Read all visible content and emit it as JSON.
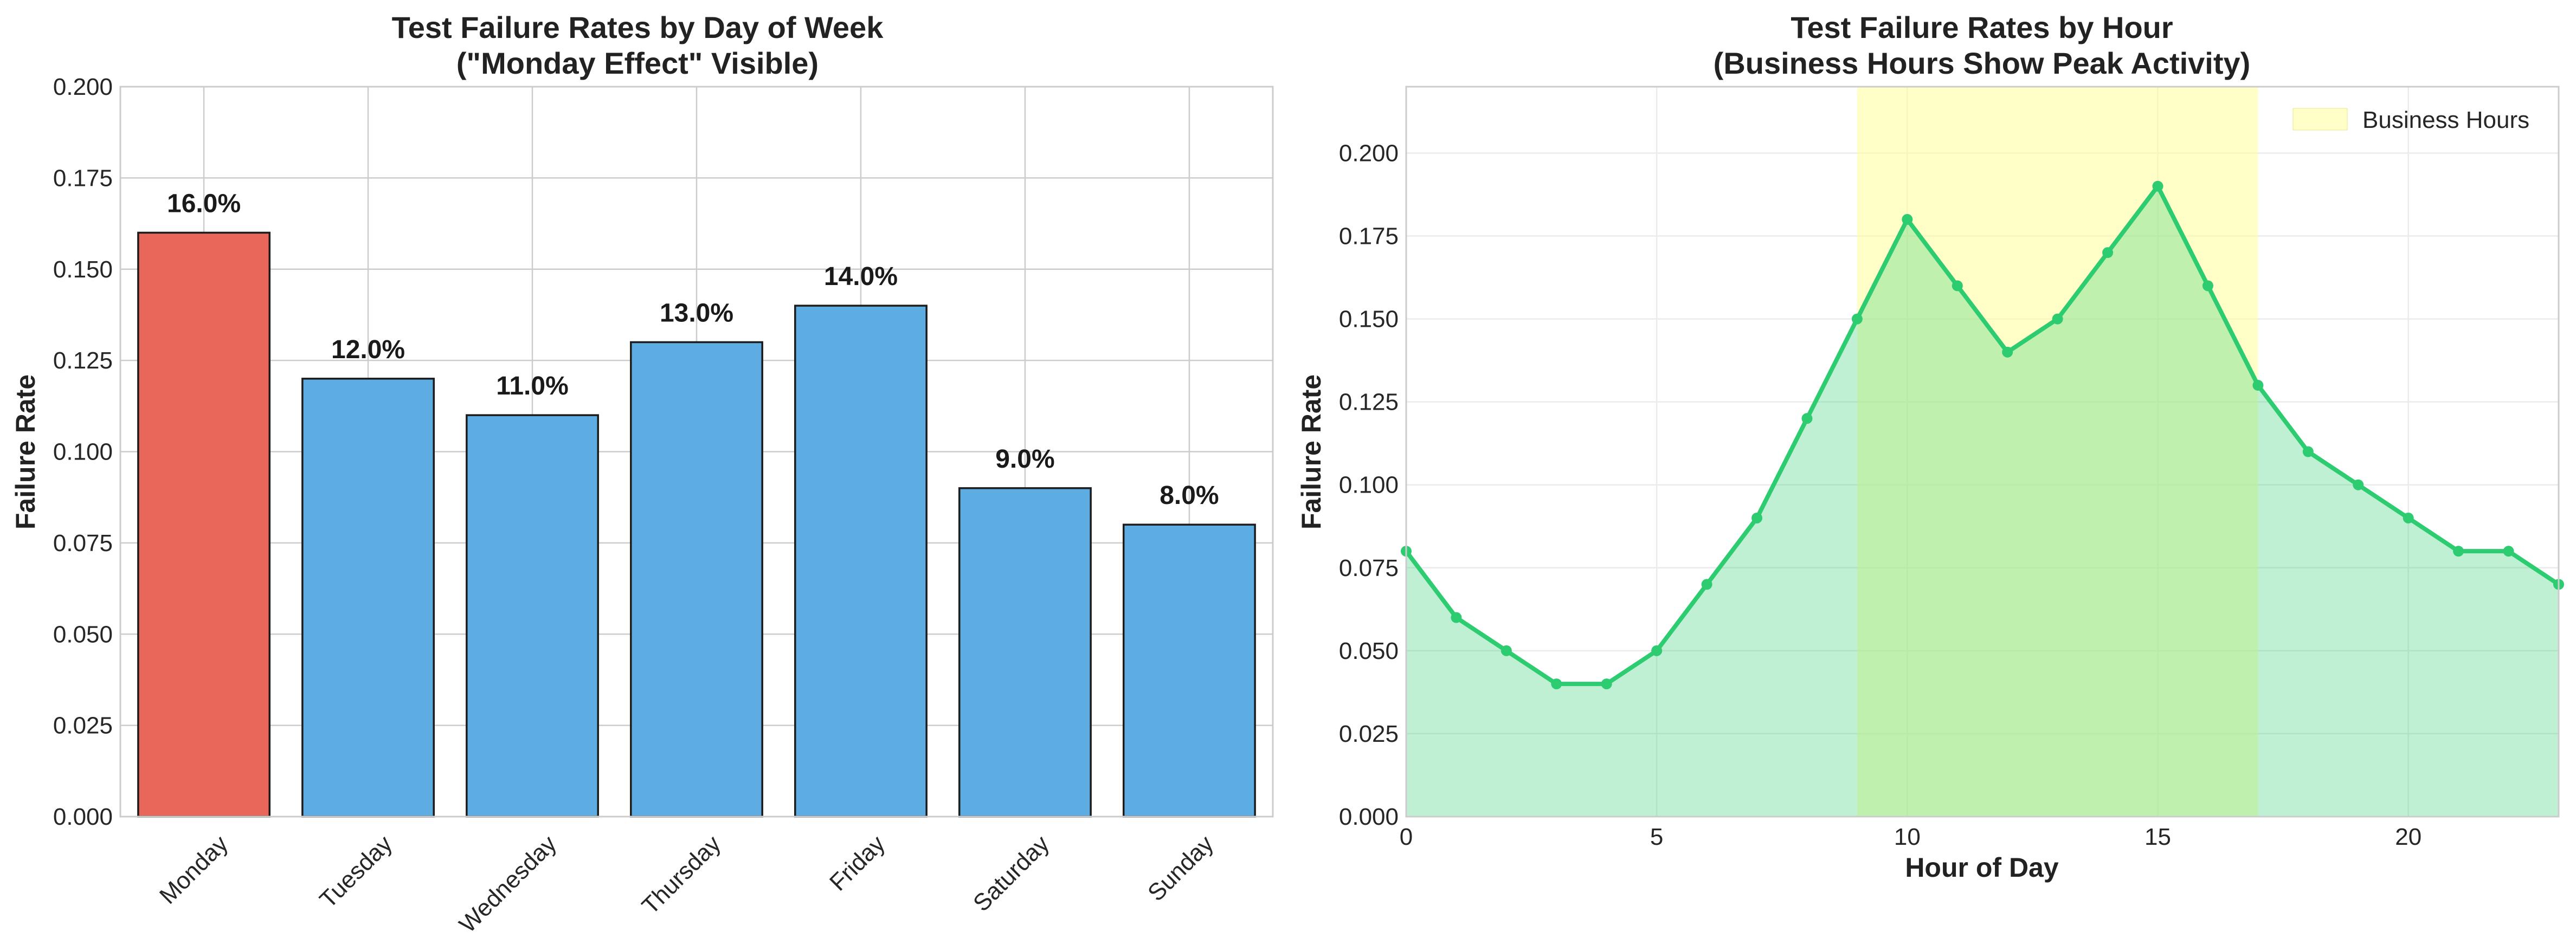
{
  "chart_data": [
    {
      "type": "bar",
      "title": "Test Failure Rates by Day of Week",
      "subtitle": "(\"Monday Effect\" Visible)",
      "xlabel": "",
      "ylabel": "Failure Rate",
      "categories": [
        "Monday",
        "Tuesday",
        "Wednesday",
        "Thursday",
        "Friday",
        "Saturday",
        "Sunday"
      ],
      "values": [
        0.16,
        0.12,
        0.11,
        0.13,
        0.14,
        0.09,
        0.08
      ],
      "data_labels": [
        "16.0%",
        "12.0%",
        "11.0%",
        "13.0%",
        "14.0%",
        "9.0%",
        "8.0%"
      ],
      "highlight_color": "#e8675a",
      "bar_color": "#5dade2",
      "ylim": [
        0,
        0.2
      ],
      "yticks": [
        0.0,
        0.025,
        0.05,
        0.075,
        0.1,
        0.125,
        0.15,
        0.175,
        0.2
      ],
      "ytick_labels": [
        "0.000",
        "0.025",
        "0.050",
        "0.075",
        "0.100",
        "0.125",
        "0.150",
        "0.175",
        "0.200"
      ],
      "grid": true
    },
    {
      "type": "line",
      "title": "Test Failure Rates by Hour",
      "subtitle": "(Business Hours Show Peak Activity)",
      "xlabel": "Hour of Day",
      "ylabel": "Failure Rate",
      "x": [
        0,
        1,
        2,
        3,
        4,
        5,
        6,
        7,
        8,
        9,
        10,
        11,
        12,
        13,
        14,
        15,
        16,
        17,
        18,
        19,
        20,
        21,
        22,
        23
      ],
      "values": [
        0.08,
        0.06,
        0.05,
        0.04,
        0.04,
        0.05,
        0.07,
        0.09,
        0.12,
        0.15,
        0.18,
        0.16,
        0.14,
        0.15,
        0.17,
        0.19,
        0.16,
        0.13,
        0.11,
        0.1,
        0.09,
        0.08,
        0.08,
        0.07
      ],
      "line_color": "#2ecc71",
      "fill_color": "#2ecc71",
      "shaded_region": {
        "x_start": 9,
        "x_end": 17,
        "color": "#ffff99",
        "label": "Business Hours"
      },
      "legend_position": "top-right",
      "xlim": [
        0,
        23
      ],
      "ylim": [
        0,
        0.22
      ],
      "xticks": [
        0,
        5,
        10,
        15,
        20
      ],
      "yticks": [
        0.0,
        0.025,
        0.05,
        0.075,
        0.1,
        0.125,
        0.15,
        0.175,
        0.2
      ],
      "ytick_labels": [
        "0.000",
        "0.025",
        "0.050",
        "0.075",
        "0.100",
        "0.125",
        "0.150",
        "0.175",
        "0.200"
      ],
      "grid": true
    }
  ]
}
